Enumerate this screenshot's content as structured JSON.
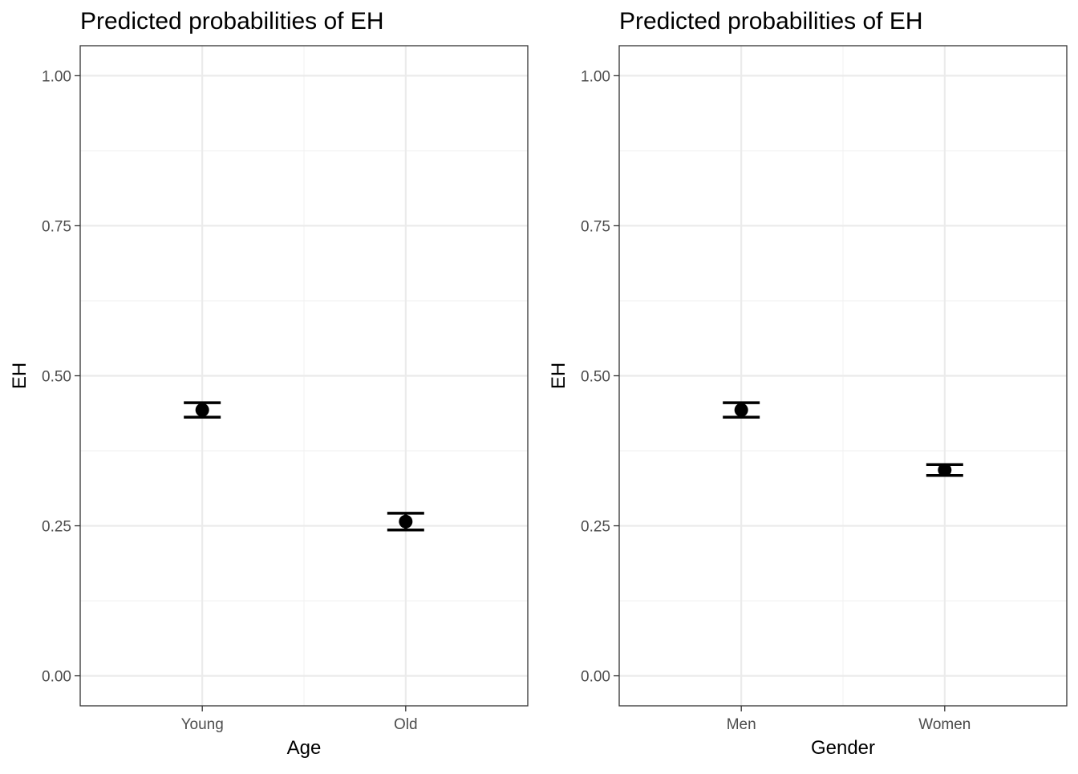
{
  "chart_data": [
    {
      "type": "scatter",
      "title": "Predicted probabilities of EH",
      "xlabel": "Age",
      "ylabel": "EH",
      "categories": [
        "Young",
        "Old"
      ],
      "values": [
        0.443,
        0.257
      ],
      "ci_low": [
        0.431,
        0.243
      ],
      "ci_high": [
        0.455,
        0.271
      ],
      "ylim": [
        -0.05,
        1.05
      ],
      "yticks": [
        "0.00",
        "0.25",
        "0.50",
        "0.75",
        "1.00"
      ],
      "grid": true,
      "error_bars": true
    },
    {
      "type": "scatter",
      "title": "Predicted probabilities of EH",
      "xlabel": "Gender",
      "ylabel": "EH",
      "categories": [
        "Men",
        "Women"
      ],
      "values": [
        0.443,
        0.343
      ],
      "ci_low": [
        0.431,
        0.334
      ],
      "ci_high": [
        0.455,
        0.352
      ],
      "ylim": [
        -0.05,
        1.05
      ],
      "yticks": [
        "0.00",
        "0.25",
        "0.50",
        "0.75",
        "1.00"
      ],
      "grid": true,
      "error_bars": true
    }
  ],
  "colors": {
    "point": "#000000",
    "panel_border": "#333333",
    "grid_major": "#ebebeb",
    "grid_minor": "#f2f2f2",
    "tick_text": "#4d4d4d"
  }
}
